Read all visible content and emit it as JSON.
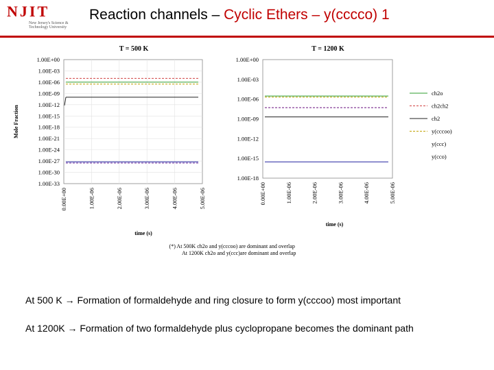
{
  "logo": {
    "word": "NJIT",
    "subtitle": "New Jersey's Science & Technology University"
  },
  "slide": {
    "title_prefix": "Reaction channels – ",
    "title_highlight": "Cyclic Ethers – y(cccco) 1",
    "note_line1": "(*) At 500K ch2o and y(cccoo) are dominant and overlap",
    "note_line2": "At 1200K ch2o and y(ccc)are dominant and overlap",
    "bullet1": "At 500 K → Formation of formaldehyde and ring closure to form y(cccoo) most important",
    "bullet2": "At 1200K → Formation of two formaldehyde plus cyclopropane becomes the dominant path"
  },
  "chart_data": [
    {
      "type": "line",
      "title": "T = 500 K",
      "xlabel": "time (s)",
      "ylabel": "Mole Fraction",
      "y_scale": "log",
      "xlim": [
        0,
        5e-06
      ],
      "ylim": [
        1e-33,
        1
      ],
      "y_ticks": [
        "1.00E+00",
        "1.00E-03",
        "1.00E-06",
        "1.00E-09",
        "1.00E-12",
        "1.00E-15",
        "1.00E-18",
        "1.00E-21",
        "1.00E-24",
        "1.00E-27",
        "1.00E-30",
        "1.00E-33"
      ],
      "x_ticks": [
        "0.00E+00",
        "1.00E-06",
        "2.00E-06",
        "3.00E-06",
        "4.00E-06",
        "5.00E-06"
      ],
      "grid": true,
      "series": [
        {
          "name": "ch2o",
          "color": "#2e9e2e",
          "dash": false,
          "y": 1e-06
        },
        {
          "name": "ch2ch2",
          "color": "#d04040",
          "dash": true,
          "y": 1e-05
        },
        {
          "name": "ch2",
          "color": "#202020",
          "dash": false,
          "y": 1e-10
        },
        {
          "name": "y(cccoo)",
          "color": "#c0a000",
          "dash": true,
          "y": 3e-07
        },
        {
          "name": "y(ccc)",
          "color": "#7030a0",
          "dash": true,
          "y": 3e-28
        },
        {
          "name": "y(cco)",
          "color": "#2020a0",
          "dash": false,
          "y": 6e-28
        }
      ]
    },
    {
      "type": "line",
      "title": "T = 1200 K",
      "xlabel": "time (s)",
      "ylabel": "",
      "y_scale": "log",
      "xlim": [
        0,
        5e-06
      ],
      "ylim": [
        1e-18,
        1
      ],
      "y_ticks": [
        "1.00E+00",
        "1.00E-03",
        "1.00E-06",
        "1.00E-09",
        "1.00E-12",
        "1.00E-15",
        "1.00E-18"
      ],
      "x_ticks": [
        "0.00E+00",
        "1.00E-06",
        "2.00E-06",
        "3.00E-06",
        "4.00E-06",
        "5.00E-06"
      ],
      "grid": false,
      "legend_position": "right",
      "series": [
        {
          "name": "ch2o",
          "color": "#2e9e2e",
          "dash": false,
          "y": 3e-06
        },
        {
          "name": "ch2ch2",
          "color": "#d04040",
          "dash": true,
          "y": 5e-08
        },
        {
          "name": "ch2",
          "color": "#202020",
          "dash": false,
          "y": 2e-09
        },
        {
          "name": "y(cccoo)",
          "color": "#c0a000",
          "dash": true,
          "y": 2e-06
        },
        {
          "name": "y(ccc)",
          "color": "#7030a0",
          "dash": true,
          "y": 5e-08
        },
        {
          "name": "y(cco)",
          "color": "#2020a0",
          "dash": false,
          "y": 3e-16
        }
      ]
    }
  ]
}
